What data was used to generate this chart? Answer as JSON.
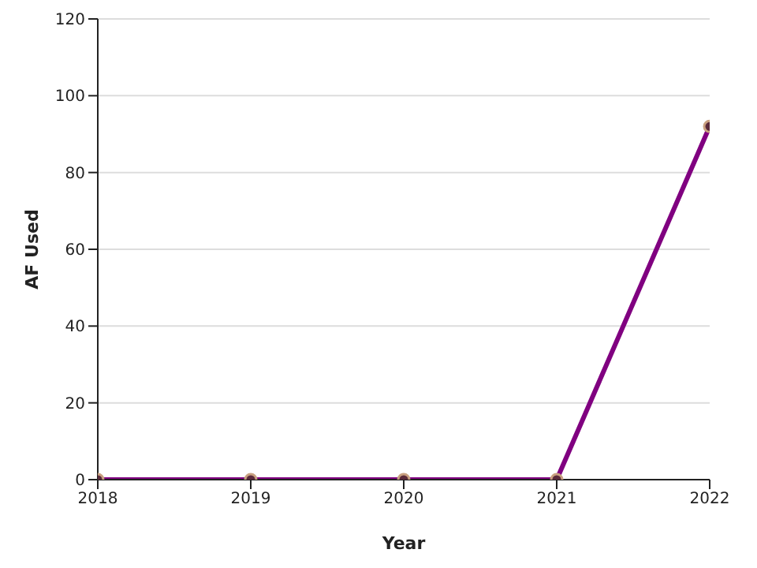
{
  "chart_data": {
    "type": "line",
    "xlabel": "Year",
    "ylabel": "AF Used",
    "x": [
      2018,
      2019,
      2020,
      2021,
      2022
    ],
    "series": [
      {
        "color": "#800080",
        "values": [
          0,
          0,
          0,
          0,
          92
        ]
      }
    ],
    "xlim": [
      2018,
      2022
    ],
    "xticks": [
      2018,
      2019,
      2020,
      2021,
      2022
    ],
    "ylim": [
      0,
      120
    ],
    "yticks": [
      0,
      20,
      40,
      60,
      80,
      100,
      120
    ],
    "grid": "y",
    "marker": "circle",
    "line_style": "solid"
  }
}
